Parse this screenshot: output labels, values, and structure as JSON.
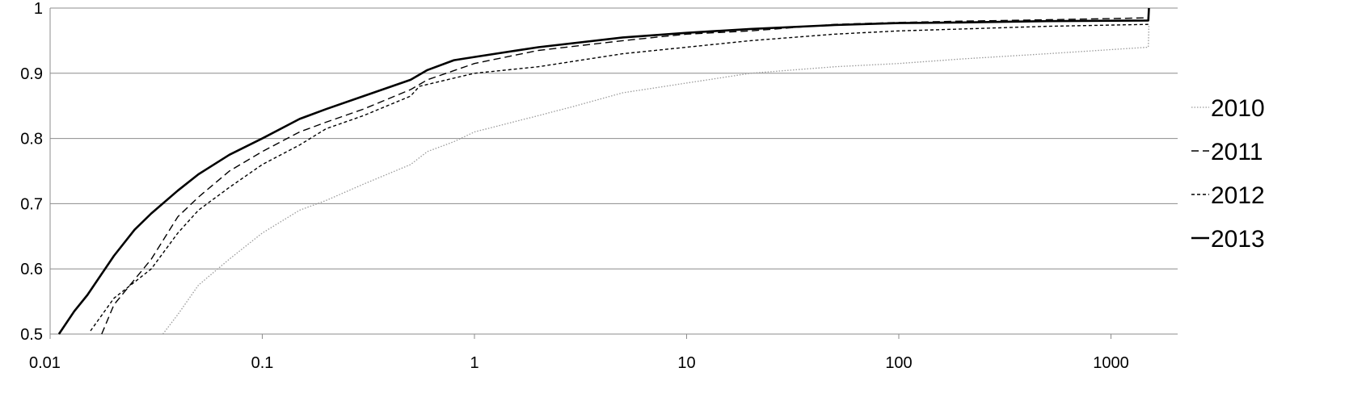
{
  "chart_data": {
    "type": "line",
    "title": "",
    "xlabel": "",
    "ylabel": "",
    "x_scale": "log",
    "xlim": [
      0.01,
      3000
    ],
    "ylim": [
      0.5,
      1.0
    ],
    "x_ticks": [
      0.01,
      0.1,
      1,
      10,
      100,
      1000
    ],
    "x_tick_labels": [
      "0.01",
      "0.1",
      "1",
      "10",
      "100",
      "1000"
    ],
    "y_ticks": [
      0.5,
      0.6,
      0.7,
      0.8,
      0.9,
      1.0
    ],
    "y_tick_labels": [
      "0.5",
      "0.6",
      "0.7",
      "0.8",
      "0.9",
      "1"
    ],
    "grid": "horizontal",
    "legend_position": "right",
    "series": [
      {
        "name": "2010",
        "style": "dotted",
        "color": "#9a9a9a",
        "points": [
          [
            0.034,
            0.5
          ],
          [
            0.04,
            0.53
          ],
          [
            0.05,
            0.575
          ],
          [
            0.07,
            0.615
          ],
          [
            0.1,
            0.655
          ],
          [
            0.15,
            0.69
          ],
          [
            0.2,
            0.705
          ],
          [
            0.3,
            0.73
          ],
          [
            0.5,
            0.76
          ],
          [
            0.6,
            0.78
          ],
          [
            0.8,
            0.795
          ],
          [
            1,
            0.81
          ],
          [
            2,
            0.835
          ],
          [
            3,
            0.85
          ],
          [
            5,
            0.87
          ],
          [
            10,
            0.885
          ],
          [
            20,
            0.9
          ],
          [
            50,
            0.91
          ],
          [
            100,
            0.915
          ],
          [
            200,
            0.922
          ],
          [
            500,
            0.93
          ],
          [
            1500,
            0.94
          ],
          [
            1510,
            0.975
          ]
        ]
      },
      {
        "name": "2011",
        "style": "dashed",
        "color": "#000000",
        "points": [
          [
            0.0175,
            0.5
          ],
          [
            0.02,
            0.545
          ],
          [
            0.03,
            0.615
          ],
          [
            0.04,
            0.68
          ],
          [
            0.05,
            0.71
          ],
          [
            0.07,
            0.75
          ],
          [
            0.1,
            0.78
          ],
          [
            0.15,
            0.81
          ],
          [
            0.2,
            0.825
          ],
          [
            0.3,
            0.845
          ],
          [
            0.5,
            0.875
          ],
          [
            0.6,
            0.89
          ],
          [
            1,
            0.915
          ],
          [
            2,
            0.935
          ],
          [
            5,
            0.95
          ],
          [
            10,
            0.96
          ],
          [
            20,
            0.965
          ],
          [
            50,
            0.975
          ],
          [
            100,
            0.978
          ],
          [
            200,
            0.98
          ],
          [
            500,
            0.982
          ],
          [
            1500,
            0.985
          ],
          [
            1510,
            1.0
          ]
        ]
      },
      {
        "name": "2012",
        "style": "short-dashed",
        "color": "#000000",
        "points": [
          [
            0.0155,
            0.505
          ],
          [
            0.02,
            0.555
          ],
          [
            0.03,
            0.6
          ],
          [
            0.04,
            0.655
          ],
          [
            0.05,
            0.69
          ],
          [
            0.07,
            0.725
          ],
          [
            0.1,
            0.76
          ],
          [
            0.15,
            0.79
          ],
          [
            0.2,
            0.815
          ],
          [
            0.3,
            0.835
          ],
          [
            0.5,
            0.865
          ],
          [
            0.55,
            0.88
          ],
          [
            1,
            0.9
          ],
          [
            2,
            0.91
          ],
          [
            5,
            0.93
          ],
          [
            10,
            0.94
          ],
          [
            20,
            0.95
          ],
          [
            50,
            0.96
          ],
          [
            100,
            0.965
          ],
          [
            200,
            0.968
          ],
          [
            500,
            0.972
          ],
          [
            1500,
            0.975
          ]
        ]
      },
      {
        "name": "2013",
        "style": "solid",
        "color": "#000000",
        "points": [
          [
            0.011,
            0.5
          ],
          [
            0.013,
            0.535
          ],
          [
            0.015,
            0.56
          ],
          [
            0.02,
            0.62
          ],
          [
            0.025,
            0.66
          ],
          [
            0.03,
            0.685
          ],
          [
            0.04,
            0.72
          ],
          [
            0.05,
            0.745
          ],
          [
            0.07,
            0.775
          ],
          [
            0.1,
            0.8
          ],
          [
            0.15,
            0.83
          ],
          [
            0.2,
            0.845
          ],
          [
            0.3,
            0.865
          ],
          [
            0.5,
            0.89
          ],
          [
            0.6,
            0.905
          ],
          [
            0.8,
            0.92
          ],
          [
            1,
            0.925
          ],
          [
            2,
            0.94
          ],
          [
            5,
            0.955
          ],
          [
            10,
            0.962
          ],
          [
            20,
            0.968
          ],
          [
            50,
            0.974
          ],
          [
            100,
            0.977
          ],
          [
            200,
            0.978
          ],
          [
            500,
            0.98
          ],
          [
            1500,
            0.981
          ],
          [
            1510,
            1.0
          ]
        ]
      }
    ]
  }
}
